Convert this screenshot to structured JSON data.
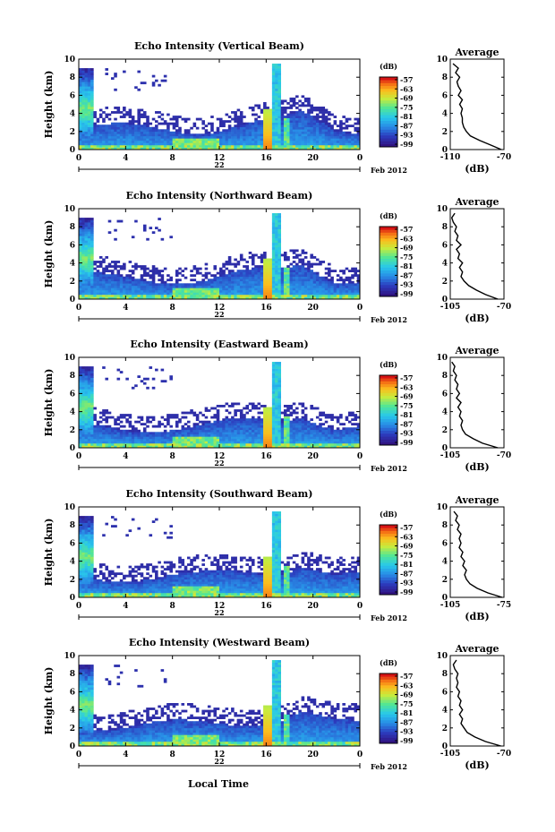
{
  "common": {
    "ylabel": "Height (km)",
    "xlabel": "Local Time",
    "x_ticks": [
      "0",
      "4",
      "8",
      "12",
      "16",
      "20",
      "0"
    ],
    "y_ticks": [
      "0",
      "2",
      "4",
      "6",
      "8",
      "10"
    ],
    "colorbar_unit": "(dB)",
    "colorbar_ticks": [
      "-57",
      "-63",
      "-69",
      "-75",
      "-81",
      "-87",
      "-93",
      "-99"
    ],
    "avg_title": "Average",
    "avg_xlabel": "(dB)",
    "month_label": "Feb 2012"
  },
  "chart_data": [
    {
      "type": "heatmap",
      "title": "Echo Intensity (Vertical Beam)",
      "date_label": "22",
      "xlim": [
        0,
        24
      ],
      "ylim": [
        0,
        10
      ],
      "color_scale": {
        "min": -99,
        "max": -57,
        "unit": "dB"
      },
      "profile": {
        "type": "line",
        "title": "Average",
        "xticks": [
          "-110",
          "-70"
        ],
        "xlim": [
          -110,
          -70
        ],
        "height": [
          0,
          0.5,
          1,
          1.5,
          2,
          2.5,
          3,
          3.5,
          4,
          4.5,
          5,
          5.5,
          6,
          6.5,
          7,
          7.5,
          8,
          8.5,
          9,
          9.5
        ],
        "values": [
          -72,
          -80,
          -88,
          -95,
          -98,
          -100,
          -101,
          -101,
          -102,
          -101,
          -103,
          -101,
          -104,
          -102,
          -104,
          -105,
          -103,
          -106,
          -104,
          -108
        ]
      }
    },
    {
      "type": "heatmap",
      "title": "Echo Intensity (Northward Beam)",
      "date_label": "22",
      "xlim": [
        0,
        24
      ],
      "ylim": [
        0,
        10
      ],
      "color_scale": {
        "min": -99,
        "max": -57,
        "unit": "dB"
      },
      "profile": {
        "type": "line",
        "title": "Average",
        "xticks": [
          "-105",
          "-70"
        ],
        "xlim": [
          -105,
          -70
        ],
        "height": [
          0,
          0.5,
          1,
          1.5,
          2,
          2.5,
          3,
          3.5,
          4,
          4.5,
          5,
          5.5,
          6,
          6.5,
          7,
          7.5,
          8,
          8.5,
          9,
          9.5
        ],
        "values": [
          -74,
          -82,
          -88,
          -93,
          -96,
          -98,
          -97,
          -99,
          -97,
          -100,
          -99,
          -101,
          -98,
          -101,
          -100,
          -102,
          -101,
          -103,
          -104,
          -102
        ]
      }
    },
    {
      "type": "heatmap",
      "title": "Echo Intensity (Eastward Beam)",
      "date_label": "22",
      "xlim": [
        0,
        24
      ],
      "ylim": [
        0,
        10
      ],
      "color_scale": {
        "min": -99,
        "max": -57,
        "unit": "dB"
      },
      "profile": {
        "type": "line",
        "title": "Average",
        "xticks": [
          "-105",
          "-70"
        ],
        "xlim": [
          -105,
          -70
        ],
        "height": [
          0,
          0.5,
          1,
          1.5,
          2,
          2.5,
          3,
          3.5,
          4,
          4.5,
          5,
          5.5,
          6,
          6.5,
          7,
          7.5,
          8,
          8.5,
          9,
          9.5
        ],
        "values": [
          -74,
          -84,
          -90,
          -95,
          -97,
          -98,
          -97,
          -99,
          -98,
          -100,
          -98,
          -101,
          -99,
          -101,
          -100,
          -102,
          -101,
          -103,
          -102,
          -104
        ]
      }
    },
    {
      "type": "heatmap",
      "title": "Echo Intensity (Southward Beam)",
      "date_label": "22",
      "xlim": [
        0,
        24
      ],
      "ylim": [
        0,
        10
      ],
      "color_scale": {
        "min": -99,
        "max": -57,
        "unit": "dB"
      },
      "profile": {
        "type": "line",
        "title": "Average",
        "xticks": [
          "-105",
          "-75"
        ],
        "xlim": [
          -105,
          -75
        ],
        "height": [
          0,
          0.5,
          1,
          1.5,
          2,
          2.5,
          3,
          3.5,
          4,
          4.5,
          5,
          5.5,
          6,
          6.5,
          7,
          7.5,
          8,
          8.5,
          9,
          9.5
        ],
        "values": [
          -76,
          -84,
          -90,
          -94,
          -96,
          -97,
          -96,
          -98,
          -97,
          -99,
          -98,
          -100,
          -99,
          -100,
          -99,
          -101,
          -100,
          -102,
          -101,
          -103
        ]
      }
    },
    {
      "type": "heatmap",
      "title": "Echo Intensity (Westward Beam)",
      "date_label": "22",
      "xlim": [
        0,
        24
      ],
      "ylim": [
        0,
        10
      ],
      "color_scale": {
        "min": -99,
        "max": -57,
        "unit": "dB"
      },
      "profile": {
        "type": "line",
        "title": "Average",
        "xticks": [
          "-105",
          "-70"
        ],
        "xlim": [
          -105,
          -70
        ],
        "height": [
          0,
          0.5,
          1,
          1.5,
          2,
          2.5,
          3,
          3.5,
          4,
          4.5,
          5,
          5.5,
          6,
          6.5,
          7,
          7.5,
          8,
          8.5,
          9,
          9.5
        ],
        "values": [
          -72,
          -82,
          -89,
          -94,
          -96,
          -98,
          -97,
          -99,
          -97,
          -99,
          -98,
          -100,
          -99,
          -101,
          -100,
          -101,
          -100,
          -102,
          -103,
          -101
        ]
      }
    }
  ]
}
